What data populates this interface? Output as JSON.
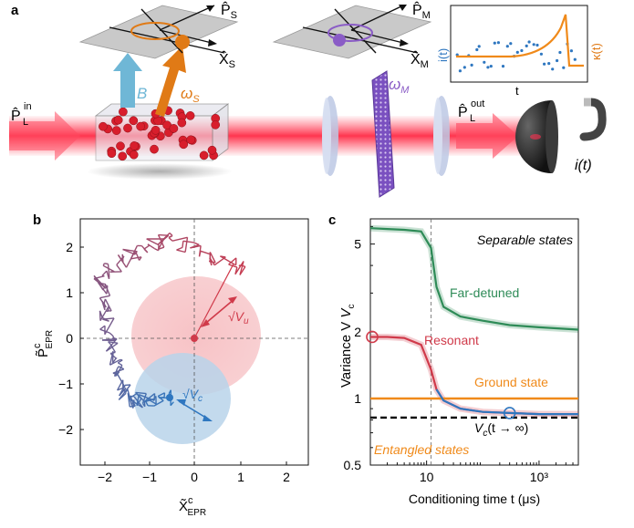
{
  "panel_labels": {
    "a": "a",
    "b": "b",
    "c": "c"
  },
  "panel_a": {
    "input_label": "P̂",
    "input_sup": "in",
    "input_sub": "L",
    "output_label": "P̂",
    "output_sup": "out",
    "output_sub": "L",
    "spin_p": "P̂",
    "spin_p_sub": "S",
    "spin_x": "X̂",
    "spin_x_sub": "S",
    "mech_p": "P̂",
    "mech_p_sub": "M",
    "mech_x": "X̂",
    "mech_x_sub": "M",
    "field_B": "B",
    "omega_s": "ω",
    "omega_s_sub": "S",
    "omega_m": "ω",
    "omega_m_sub": "M",
    "current": "i(t)",
    "inset_left_label": "i(t)",
    "inset_right_label": "κ(t)",
    "inset_x_label": "t",
    "colors": {
      "laser": "#e8334a",
      "spin": "#e07a16",
      "mech": "#8a5cc6",
      "blue": "#2f77c0",
      "field": "#6fb7d6"
    }
  },
  "panel_b": {
    "xlabel": "X̃",
    "xlabel_sup": "c",
    "xlabel_sub": "EPR",
    "ylabel": "P̃",
    "ylabel_sup": "c",
    "ylabel_sub": "EPR",
    "xticks": [
      "−2",
      "−1",
      "0",
      "1",
      "2"
    ],
    "yticks": [
      "2",
      "1",
      "0",
      "−1",
      "−2"
    ],
    "label_vu": "√V",
    "label_vu_sub": "u",
    "label_vc": "√V",
    "label_vc_sub": "c"
  },
  "chart_data": {
    "type": "line",
    "xlabel": "Conditioning time t (μs)",
    "ylabel": "Variance V",
    "ylabel_sub": "c",
    "x_scale": "log",
    "y_scale": "log",
    "xlim": [
      1,
      5000
    ],
    "ylim": [
      0.5,
      6.5
    ],
    "xticks": [
      "10",
      "10³"
    ],
    "yticks": [
      "5",
      "2",
      "1",
      "0.5"
    ],
    "series": [
      {
        "name": "Far-detuned",
        "color": "#2e8b57",
        "x": [
          1,
          2,
          4,
          8,
          12,
          15,
          20,
          40,
          100,
          300,
          1000,
          5000
        ],
        "y": [
          5.9,
          5.85,
          5.8,
          5.7,
          4.8,
          3.2,
          2.6,
          2.35,
          2.25,
          2.15,
          2.1,
          2.05
        ]
      },
      {
        "name": "Resonant",
        "color": "#d03a4a",
        "x": [
          1,
          2,
          4,
          8,
          12,
          15,
          20,
          40,
          100,
          300,
          1000,
          5000
        ],
        "y": [
          1.9,
          1.9,
          1.88,
          1.75,
          1.35,
          1.1,
          0.98,
          0.9,
          0.87,
          0.86,
          0.85,
          0.85
        ]
      },
      {
        "name": "Ground state",
        "color": "#f08a1a",
        "x": [
          1,
          5000
        ],
        "y": [
          1,
          1
        ]
      },
      {
        "name": "Vc(t→∞)",
        "color": "#000000",
        "x": [
          1,
          5000
        ],
        "y": [
          0.82,
          0.82
        ]
      }
    ],
    "annotations": {
      "separable": "Separable states",
      "far_detuned": "Far-detuned",
      "resonant": "Resonant",
      "ground": "Ground state",
      "entangled": "Entangled states",
      "vc_limit": "V",
      "vc_limit_sub": "c",
      "vc_limit_tail": "(t → ∞)"
    }
  }
}
